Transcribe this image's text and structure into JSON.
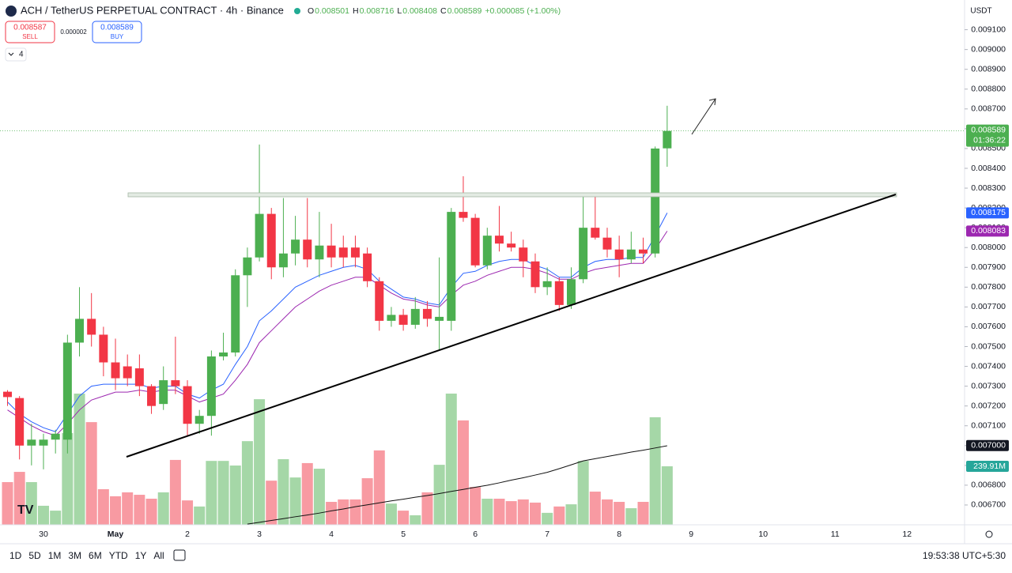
{
  "header": {
    "symbol": "ACH / TetherUS PERPETUAL CONTRACT · 4h · Binance",
    "ohlc_letters": [
      "O",
      "H",
      "L",
      "C"
    ],
    "change": "+0.000085 (+1.00%)"
  },
  "trade": {
    "sell_price": 0.008587,
    "sell": "SELL",
    "spread": 2e-06,
    "buy": "BUY"
  },
  "indicators_count": 4,
  "currency": "USDT",
  "countdown": "01:36:22",
  "timeframes": [
    "1D",
    "5D",
    "1M",
    "3M",
    "6M",
    "YTD",
    "1Y",
    "All"
  ],
  "clock": "19:53:38 UTC+5:30",
  "chart_data": {
    "type": "candlestick",
    "categories": [
      null,
      null,
      null,
      "30",
      null,
      null,
      null,
      null,
      null,
      "May",
      null,
      null,
      null,
      null,
      null,
      "2",
      null,
      null,
      null,
      null,
      null,
      "3",
      null,
      null,
      null,
      null,
      null,
      "4",
      null,
      null,
      null,
      null,
      null,
      "5",
      null,
      null,
      null,
      null,
      null,
      "6",
      null,
      null,
      null,
      null,
      null,
      "7",
      null,
      null,
      null,
      null,
      null,
      "8",
      null,
      null,
      null,
      null
    ],
    "future_labels": [
      "9",
      "10",
      "11",
      "12"
    ],
    "open": [
      0.007272,
      0.00724,
      0.007,
      0.007,
      0.00703,
      0.00703,
      0.00752,
      0.00764,
      0.00756,
      0.00742,
      0.0074,
      0.00739,
      0.0073,
      0.00721,
      0.00733,
      0.0073,
      0.00711,
      0.00715,
      0.00745,
      0.00747,
      0.00786,
      0.00795,
      0.00817,
      0.0079,
      0.00797,
      0.00804,
      0.00794,
      0.00801,
      0.008,
      0.008,
      0.00797,
      0.00783,
      0.00763,
      0.00766,
      0.00761,
      0.00769,
      0.00763,
      0.00763,
      0.00818,
      0.00815,
      0.00791,
      0.00806,
      0.00802,
      0.008,
      0.00793,
      0.0078,
      0.00783,
      0.00771,
      0.00784,
      0.0081,
      0.00805,
      0.00799,
      0.00794,
      0.00799,
      0.00797,
      0.008501
    ],
    "high": [
      0.00728,
      0.00725,
      0.00711,
      0.00706,
      0.00708,
      0.00756,
      0.0078,
      0.00777,
      0.0076,
      0.00754,
      0.00746,
      0.00746,
      0.00731,
      0.0074,
      0.00755,
      0.00733,
      0.00718,
      0.00748,
      0.00757,
      0.00789,
      0.008,
      0.00852,
      0.0082,
      0.00825,
      0.00816,
      0.00825,
      0.00818,
      0.00812,
      0.00806,
      0.00806,
      0.008,
      0.00785,
      0.0077,
      0.00769,
      0.00775,
      0.00773,
      0.00795,
      0.0082,
      0.00836,
      0.00817,
      0.0081,
      0.00821,
      0.00808,
      0.00804,
      0.00797,
      0.0079,
      0.00785,
      0.0079,
      0.00826,
      0.00827,
      0.0081,
      0.00806,
      0.00808,
      0.00805,
      0.00851,
      0.008716
    ],
    "low": [
      0.0072,
      0.00693,
      0.0069,
      0.00688,
      0.00696,
      0.00696,
      0.00745,
      0.0075,
      0.00735,
      0.00728,
      0.0073,
      0.00725,
      0.00716,
      0.00718,
      0.00726,
      0.00705,
      0.00706,
      0.00705,
      0.00743,
      0.00745,
      0.0077,
      0.00793,
      0.00784,
      0.00785,
      0.00791,
      0.0079,
      0.00785,
      0.0079,
      0.0079,
      0.0079,
      0.0078,
      0.00758,
      0.0076,
      0.00758,
      0.00759,
      0.0076,
      0.00748,
      0.00758,
      0.00813,
      0.0079,
      0.00789,
      0.00798,
      0.00798,
      0.00785,
      0.00777,
      0.00776,
      0.00768,
      0.00769,
      0.00782,
      0.00804,
      0.00795,
      0.00785,
      0.00792,
      0.00792,
      0.00795,
      0.008408
    ],
    "close": [
      0.007245,
      0.007,
      0.00703,
      0.00703,
      0.00706,
      0.00752,
      0.00764,
      0.00756,
      0.00742,
      0.00734,
      0.00734,
      0.0073,
      0.0072,
      0.00733,
      0.0073,
      0.00711,
      0.00715,
      0.00745,
      0.00747,
      0.00786,
      0.00795,
      0.00817,
      0.0079,
      0.00797,
      0.00804,
      0.00794,
      0.00801,
      0.00795,
      0.00795,
      0.00795,
      0.00783,
      0.00763,
      0.00766,
      0.00761,
      0.00769,
      0.00764,
      0.00765,
      0.00818,
      0.00815,
      0.00791,
      0.00806,
      0.00802,
      0.008,
      0.00793,
      0.0078,
      0.00783,
      0.00771,
      0.00784,
      0.0081,
      0.00805,
      0.00799,
      0.00794,
      0.00799,
      0.00797,
      0.0085,
      0.008589
    ],
    "up_color": "#4caf50",
    "down_color": "#f23645",
    "lines": [
      {
        "color": "#2962ff",
        "values": [
          0.00722,
          0.00716,
          0.00712,
          0.00709,
          0.00707,
          0.00716,
          0.00725,
          0.0073,
          0.00731,
          0.00731,
          0.00731,
          0.00731,
          0.00729,
          0.0073,
          0.0073,
          0.00726,
          0.00724,
          0.00728,
          0.00731,
          0.00741,
          0.0075,
          0.00763,
          0.00768,
          0.00774,
          0.0078,
          0.00783,
          0.00786,
          0.00788,
          0.0079,
          0.00791,
          0.00789,
          0.00783,
          0.00779,
          0.00775,
          0.00774,
          0.00772,
          0.00771,
          0.0078,
          0.00787,
          0.00788,
          0.00791,
          0.00793,
          0.00794,
          0.00794,
          0.00791,
          0.00789,
          0.00785,
          0.00785,
          0.0079,
          0.00793,
          0.00794,
          0.00794,
          0.00795,
          0.00795,
          0.00806,
          0.008175
        ]
      },
      {
        "color": "#9c27b0",
        "values": [
          0.00718,
          0.00714,
          0.0071,
          0.00707,
          0.00705,
          0.00711,
          0.00718,
          0.00723,
          0.00725,
          0.00727,
          0.00727,
          0.00728,
          0.00727,
          0.00728,
          0.00728,
          0.00725,
          0.00722,
          0.00724,
          0.00726,
          0.00733,
          0.00741,
          0.00752,
          0.00758,
          0.00764,
          0.0077,
          0.00774,
          0.00778,
          0.00781,
          0.00783,
          0.00785,
          0.00785,
          0.00781,
          0.00777,
          0.00774,
          0.00773,
          0.00771,
          0.0077,
          0.00776,
          0.00781,
          0.00783,
          0.00786,
          0.00788,
          0.0079,
          0.0079,
          0.00789,
          0.00787,
          0.00784,
          0.00784,
          0.00787,
          0.00789,
          0.0079,
          0.00791,
          0.00792,
          0.00792,
          0.00799,
          0.008083
        ]
      }
    ],
    "volume": [
      175,
      217,
      175,
      78,
      58,
      376,
      538,
      421,
      146,
      117,
      133,
      123,
      107,
      133,
      266,
      100,
      75,
      262,
      262,
      243,
      343,
      515,
      181,
      269,
      194,
      253,
      230,
      94,
      104,
      104,
      191,
      305,
      87,
      58,
      39,
      133,
      246,
      538,
      428,
      155,
      107,
      107,
      97,
      104,
      91,
      49,
      75,
      84,
      262,
      136,
      104,
      94,
      68,
      94,
      441,
      239.91
    ],
    "volume_label": "239.91M",
    "volume_ma": {
      "color": "#111111",
      "values": [
        null,
        null,
        null,
        null,
        null,
        null,
        null,
        null,
        null,
        null,
        null,
        null,
        null,
        null,
        null,
        null,
        null,
        null,
        null,
        null,
        3,
        10,
        18,
        25,
        33,
        40,
        48,
        57,
        65,
        74,
        82,
        90,
        98,
        105,
        113,
        120,
        128,
        137,
        145,
        154,
        162,
        172,
        183,
        193,
        204,
        215,
        230,
        246,
        262,
        271,
        280,
        289,
        298,
        306,
        315,
        324
      ]
    },
    "price_marker": {
      "value": 0.007,
      "label": "0.007000"
    },
    "ylim": [
      0.0066,
      0.00925
    ],
    "yticks": [
      {
        "value": 0.0067,
        "label": "0.006700"
      },
      {
        "value": 0.0068,
        "label": "0.006800"
      },
      {
        "value": 0.0069,
        "label": "0.006900"
      },
      {
        "value": 0.007,
        "label": "0.007000"
      },
      {
        "value": 0.0071,
        "label": "0.007100"
      },
      {
        "value": 0.0072,
        "label": "0.007200"
      },
      {
        "value": 0.0073,
        "label": "0.007300"
      },
      {
        "value": 0.0074,
        "label": "0.007400"
      },
      {
        "value": 0.0075,
        "label": "0.007500"
      },
      {
        "value": 0.0076,
        "label": "0.007600"
      },
      {
        "value": 0.0077,
        "label": "0.007700"
      },
      {
        "value": 0.0078,
        "label": "0.007800"
      },
      {
        "value": 0.0079,
        "label": "0.007900"
      },
      {
        "value": 0.008,
        "label": "0.008000"
      },
      {
        "value": 0.0081,
        "label": "0.008100"
      },
      {
        "value": 0.0082,
        "label": "0.008200"
      },
      {
        "value": 0.0083,
        "label": "0.008300"
      },
      {
        "value": 0.0084,
        "label": "0.008400"
      },
      {
        "value": 0.0085,
        "label": "0.008500"
      },
      {
        "value": 0.0086,
        "label": "0.008600"
      },
      {
        "value": 0.0087,
        "label": "0.008700"
      },
      {
        "value": 0.0088,
        "label": "0.008800"
      },
      {
        "value": 0.0089,
        "label": "0.008900"
      },
      {
        "value": 0.009,
        "label": "0.009000"
      },
      {
        "value": 0.0091,
        "label": "0.009100"
      }
    ]
  }
}
